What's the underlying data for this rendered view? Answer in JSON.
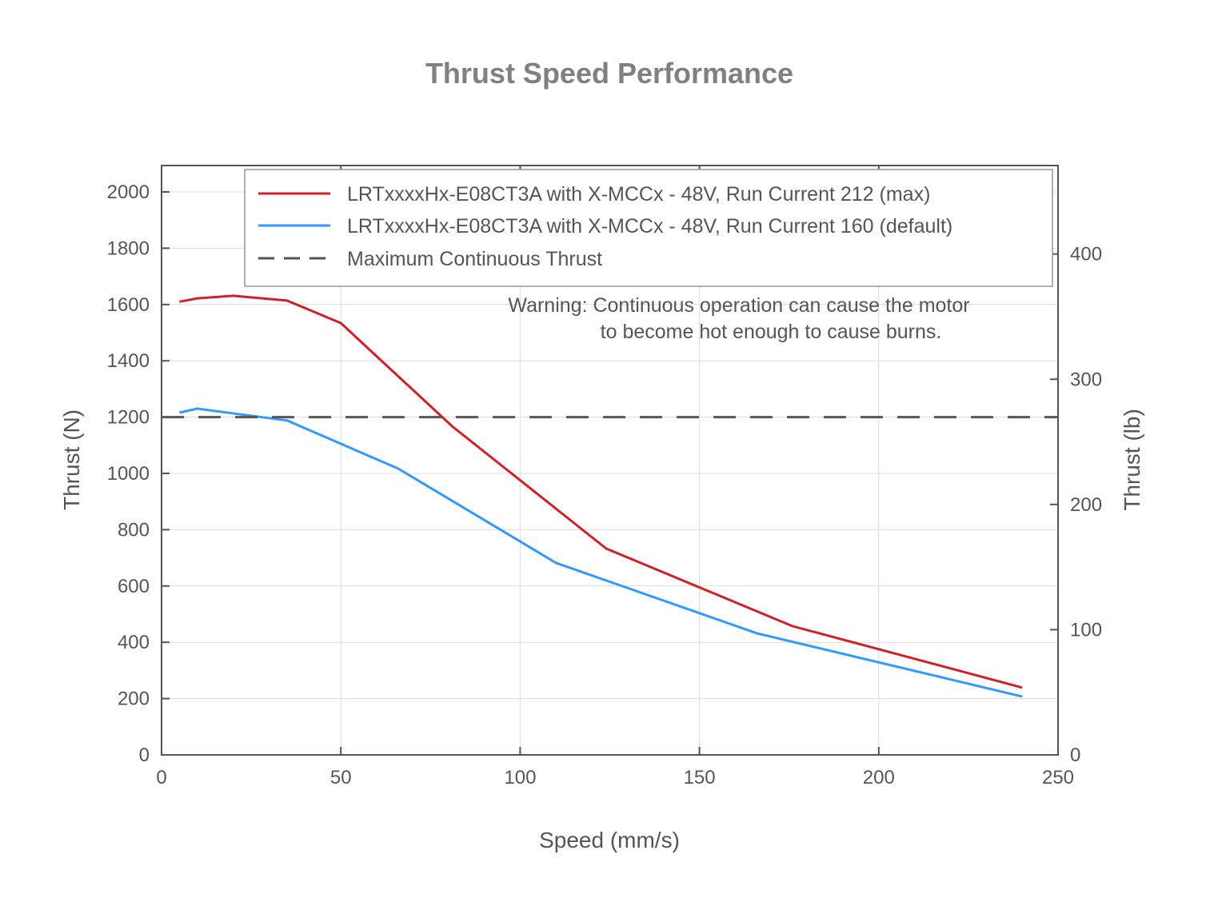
{
  "chart_data": {
    "type": "line",
    "title": "Thrust Speed Performance",
    "xlabel": "Speed (mm/s)",
    "ylabel": "Thrust (N)",
    "ylabel_right": "Thrust (lb)",
    "xlim": [
      0,
      250
    ],
    "ylim": [
      0,
      2100
    ],
    "ylim_right_lb": [
      0,
      472
    ],
    "x_ticks": [
      0,
      50,
      100,
      150,
      200,
      250
    ],
    "y_ticks": [
      0,
      200,
      400,
      600,
      800,
      1000,
      1200,
      1400,
      1600,
      1800,
      2000
    ],
    "y_ticks_right": [
      0,
      100,
      200,
      300,
      400
    ],
    "grid": true,
    "legend_placement": "top-right",
    "series": [
      {
        "name": "LRTxxxxHx-E08CT3A with X-MCCx - 48V, Run Current 212 (max)",
        "color": "#d0202a",
        "style": "solid",
        "x": [
          5,
          10,
          20,
          35,
          50,
          81,
          124,
          176,
          240
        ],
        "y": [
          1610,
          1622,
          1631,
          1614,
          1534,
          1168,
          733,
          457,
          239
        ]
      },
      {
        "name": "LRTxxxxHx-E08CT3A with X-MCCx - 48V, Run Current 160 (default)",
        "color": "#3399ff",
        "style": "solid",
        "x": [
          5,
          10,
          35,
          66,
          110,
          166,
          240
        ],
        "y": [
          1216,
          1230,
          1188,
          1017,
          682,
          432,
          207
        ]
      },
      {
        "name": "Maximum Continuous Thrust",
        "color": "#555555",
        "style": "dashed",
        "x": [
          0,
          250
        ],
        "y": [
          1200,
          1200
        ]
      }
    ],
    "annotations": [
      "Warning: Continuous operation can cause the motor",
      "to become hot enough to cause burns."
    ]
  }
}
